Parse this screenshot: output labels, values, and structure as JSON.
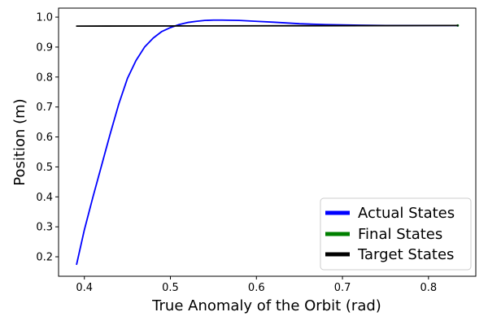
{
  "chart_data": {
    "type": "line",
    "title": "",
    "xlabel": "True Anomaly of the Orbit (rad)",
    "ylabel": "Position (m)",
    "xlim": [
      0.37,
      0.855
    ],
    "ylim": [
      0.135,
      1.03
    ],
    "xticks": [
      0.4,
      0.5,
      0.6,
      0.7,
      0.8
    ],
    "yticks": [
      0.2,
      0.3,
      0.4,
      0.5,
      0.6,
      0.7,
      0.8,
      0.9,
      1.0
    ],
    "xtick_labels": [
      "0.4",
      "0.5",
      "0.6",
      "0.7",
      "0.8"
    ],
    "ytick_labels": [
      "0.2",
      "0.3",
      "0.4",
      "0.5",
      "0.6",
      "0.7",
      "0.8",
      "0.9",
      "1.0"
    ],
    "grid": false,
    "legend_position": "bottom-right",
    "series": [
      {
        "name": "Actual States",
        "color": "#0000ff",
        "x": [
          0.391,
          0.4,
          0.41,
          0.42,
          0.43,
          0.44,
          0.45,
          0.46,
          0.47,
          0.48,
          0.49,
          0.5,
          0.51,
          0.52,
          0.53,
          0.54,
          0.55,
          0.56,
          0.58,
          0.6,
          0.62,
          0.65,
          0.68,
          0.7,
          0.72,
          0.75,
          0.78,
          0.8,
          0.834
        ],
        "y": [
          0.175,
          0.29,
          0.4,
          0.505,
          0.61,
          0.71,
          0.795,
          0.855,
          0.9,
          0.93,
          0.952,
          0.965,
          0.975,
          0.982,
          0.986,
          0.989,
          0.99,
          0.99,
          0.989,
          0.986,
          0.983,
          0.978,
          0.975,
          0.974,
          0.973,
          0.972,
          0.972,
          0.972,
          0.972
        ]
      },
      {
        "name": "Final States",
        "color": "#008000",
        "x": [
          0.834
        ],
        "y": [
          0.972
        ]
      },
      {
        "name": "Target States",
        "color": "#000000",
        "x": [
          0.391,
          0.834
        ],
        "y": [
          0.97,
          0.972
        ]
      }
    ]
  }
}
